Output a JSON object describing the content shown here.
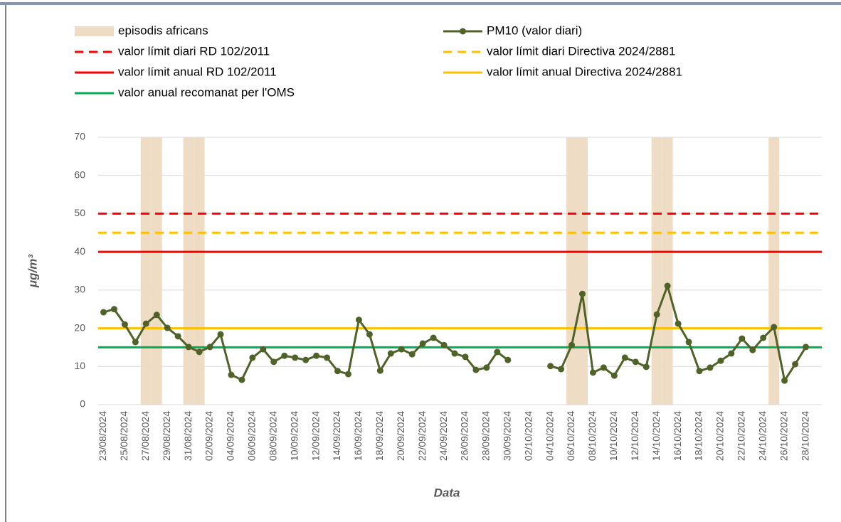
{
  "chart_data": {
    "type": "line",
    "x_label": "Data",
    "y_label": "μg/m³",
    "categories": [
      "23/08/2024",
      null,
      "25/08/2024",
      null,
      "27/08/2024",
      null,
      "29/08/2024",
      null,
      "31/08/2024",
      null,
      "02/09/2024",
      null,
      "04/09/2024",
      null,
      "06/09/2024",
      null,
      "08/09/2024",
      null,
      "10/09/2024",
      null,
      "12/09/2024",
      null,
      "14/09/2024",
      null,
      "16/09/2024",
      null,
      "18/09/2024",
      null,
      "20/09/2024",
      null,
      "22/09/2024",
      null,
      "24/09/2024",
      null,
      "26/09/2024",
      null,
      "28/09/2024",
      null,
      "30/09/2024",
      null,
      "02/10/2024",
      null,
      "04/10/2024",
      null,
      "06/10/2024",
      null,
      "08/10/2024",
      null,
      "10/10/2024",
      null,
      "12/10/2024",
      null,
      "14/10/2024",
      null,
      "16/10/2024",
      null,
      "18/10/2024",
      null,
      "20/10/2024",
      null,
      "22/10/2024",
      null,
      "24/10/2024",
      null,
      "26/10/2024",
      null,
      "28/10/2024",
      null
    ],
    "series": [
      {
        "name": "episodis africans",
        "type": "bar",
        "color": "#efdcc4",
        "values": [
          null,
          null,
          null,
          null,
          70,
          70,
          null,
          null,
          70,
          70,
          null,
          null,
          null,
          null,
          null,
          null,
          null,
          null,
          null,
          null,
          null,
          null,
          null,
          null,
          null,
          null,
          null,
          null,
          null,
          null,
          null,
          null,
          null,
          null,
          null,
          null,
          null,
          null,
          null,
          null,
          null,
          null,
          null,
          null,
          70,
          70,
          null,
          null,
          null,
          null,
          null,
          null,
          70,
          70,
          null,
          null,
          null,
          null,
          null,
          null,
          null,
          null,
          null,
          70,
          null,
          null,
          null,
          null
        ]
      },
      {
        "name": "PM10 (valor diari)",
        "type": "line",
        "color": "#4f6228",
        "values": [
          24.2,
          25.0,
          21.0,
          16.4,
          21.2,
          23.5,
          20.1,
          17.9,
          15.1,
          13.8,
          15.1,
          18.4,
          7.8,
          6.5,
          12.3,
          14.5,
          11.2,
          12.8,
          12.3,
          11.7,
          12.8,
          12.3,
          8.8,
          8.0,
          22.2,
          18.4,
          8.9,
          13.4,
          14.5,
          13.2,
          16.0,
          17.5,
          15.6,
          13.4,
          12.5,
          9.1,
          9.7,
          13.8,
          11.7,
          null,
          null,
          null,
          10.1,
          9.3,
          15.6,
          29.0,
          8.4,
          9.7,
          7.6,
          12.3,
          11.2,
          9.9,
          23.6,
          31.1,
          21.2,
          16.4,
          8.8,
          9.7,
          11.5,
          13.4,
          17.3,
          14.3,
          17.5,
          20.3,
          6.3,
          10.6,
          15.1,
          null
        ]
      },
      {
        "name": "valor límit diari RD 102/2011",
        "type": "reference",
        "color": "#ff0000",
        "dashed": true,
        "value": 50
      },
      {
        "name": "valor límit diari Directiva 2024/2881",
        "type": "reference",
        "color": "#ffc000",
        "dashed": true,
        "value": 45
      },
      {
        "name": "valor límit anual RD 102/2011",
        "type": "reference",
        "color": "#ff0000",
        "dashed": false,
        "value": 40
      },
      {
        "name": "valor límit anual Directiva 2024/2881",
        "type": "reference",
        "color": "#ffc000",
        "dashed": false,
        "value": 20
      },
      {
        "name": "valor anual recomanat per l'OMS",
        "type": "reference",
        "color": "#00b050",
        "dashed": false,
        "value": 15
      }
    ],
    "ylim": [
      0,
      70
    ],
    "yticks": [
      0,
      10,
      20,
      30,
      40,
      50,
      60,
      70
    ],
    "grid": true,
    "legend": "top"
  }
}
